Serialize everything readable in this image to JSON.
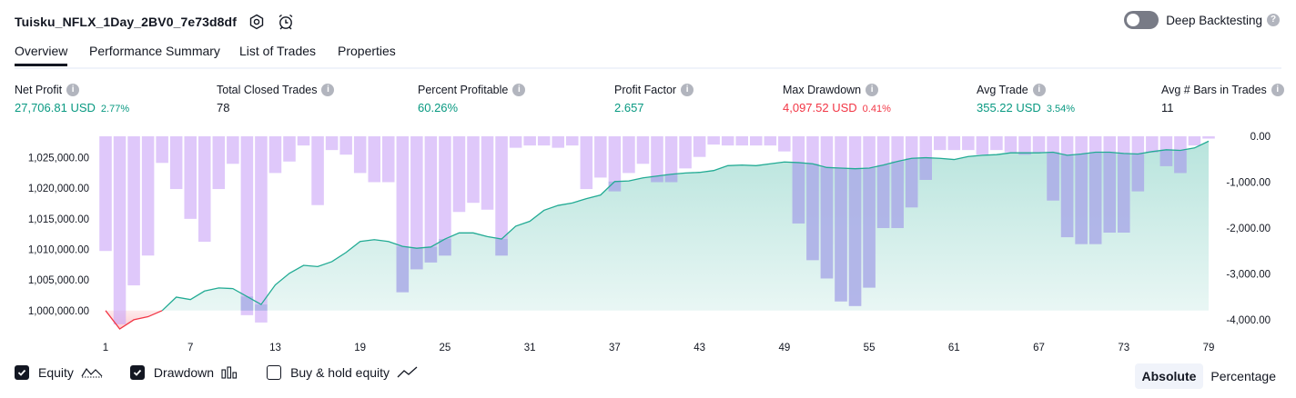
{
  "header": {
    "title": "Tuisku_NFLX_1Day_2BV0_7e73d8df",
    "settings_icon": "gear-icon",
    "alert_icon": "alarm-clock-icon"
  },
  "deep_backtesting": {
    "label": "Deep Backtesting",
    "enabled": false
  },
  "tabs": [
    {
      "label": "Overview",
      "active": true
    },
    {
      "label": "Performance Summary",
      "active": false
    },
    {
      "label": "List of Trades",
      "active": false
    },
    {
      "label": "Properties",
      "active": false
    }
  ],
  "metrics": [
    {
      "label": "Net Profit",
      "value": "27,706.81 USD",
      "pct": "2.77%",
      "tone": "green"
    },
    {
      "label": "Total Closed Trades",
      "value": "78",
      "pct": "",
      "tone": "dark"
    },
    {
      "label": "Percent Profitable",
      "value": "60.26%",
      "pct": "",
      "tone": "green"
    },
    {
      "label": "Profit Factor",
      "value": "2.657",
      "pct": "",
      "tone": "green"
    },
    {
      "label": "Max Drawdown",
      "value": "4,097.52 USD",
      "pct": "0.41%",
      "tone": "red"
    },
    {
      "label": "Avg Trade",
      "value": "355.22 USD",
      "pct": "3.54%",
      "tone": "green"
    },
    {
      "label": "Avg # Bars in Trades",
      "value": "11",
      "pct": "",
      "tone": "dark"
    }
  ],
  "chart_data": {
    "type": "area",
    "x_ticks": [
      "1",
      "7",
      "13",
      "19",
      "25",
      "31",
      "37",
      "43",
      "49",
      "55",
      "61",
      "67",
      "73",
      "79"
    ],
    "left_axis_ticks": [
      "1,025,000.00",
      "1,020,000.00",
      "1,015,000.00",
      "1,010,000.00",
      "1,005,000.00",
      "1,000,000.00"
    ],
    "right_axis_ticks": [
      "0.00",
      "-1,000.00",
      "-2,000.00",
      "-3,000.00",
      "-4,000.00"
    ],
    "equity_range": [
      997000,
      1028500
    ],
    "drawdown_range": [
      -4200,
      0
    ],
    "colors": {
      "equity": "#22ab94",
      "equity_neg": "#f23645",
      "drawdown": "#c9a3f7",
      "overlap": "#a7b2e4"
    },
    "series": [
      {
        "name": "Equity",
        "values": [
          1000000,
          997000,
          998500,
          999000,
          1000000,
          1002200,
          1001800,
          1003200,
          1003700,
          1003600,
          1002300,
          1001000,
          1004200,
          1006100,
          1007400,
          1007200,
          1008000,
          1009500,
          1011300,
          1011600,
          1011300,
          1010500,
          1010200,
          1010400,
          1011700,
          1012700,
          1012700,
          1012100,
          1011700,
          1013800,
          1014600,
          1016400,
          1017200,
          1017600,
          1018300,
          1018900,
          1021100,
          1021200,
          1021700,
          1022000,
          1022300,
          1022500,
          1022600,
          1022900,
          1023700,
          1023800,
          1023700,
          1024000,
          1024300,
          1024200,
          1024000,
          1023400,
          1023300,
          1023200,
          1023300,
          1023800,
          1024400,
          1024900,
          1025000,
          1024900,
          1024700,
          1025200,
          1025400,
          1025500,
          1025800,
          1025800,
          1025800,
          1025900,
          1025400,
          1025600,
          1025900,
          1025900,
          1025700,
          1025600,
          1026000,
          1026300,
          1026200,
          1026600,
          1027700
        ]
      },
      {
        "name": "Drawdown",
        "values": [
          -2500,
          -4100,
          -3250,
          -2600,
          -580,
          -1150,
          -1800,
          -2300,
          -1150,
          -600,
          -3900,
          -4060,
          -800,
          -550,
          -200,
          -1500,
          -300,
          -400,
          -800,
          -1000,
          -1000,
          -3400,
          -2900,
          -2750,
          -2600,
          -1650,
          -1450,
          -1600,
          -2600,
          -250,
          -200,
          -200,
          -250,
          -200,
          -1150,
          -900,
          -1200,
          -800,
          -600,
          -1000,
          -1000,
          -700,
          -450,
          -180,
          -200,
          -200,
          -200,
          -200,
          -330,
          -1900,
          -2700,
          -3100,
          -3600,
          -3700,
          -3300,
          -2000,
          -2000,
          -1550,
          -950,
          -300,
          -300,
          -300,
          -400,
          -300,
          -350,
          -400,
          -350,
          -1400,
          -2200,
          -2350,
          -2350,
          -2100,
          -2100,
          -1200,
          -350,
          -650,
          -800,
          -200,
          -50
        ]
      },
      {
        "name": "Buy & hold equity",
        "values": []
      }
    ]
  },
  "legend": [
    {
      "label": "Equity",
      "checked": true,
      "icon": "equity-line-icon"
    },
    {
      "label": "Drawdown",
      "checked": true,
      "icon": "drawdown-bars-icon"
    },
    {
      "label": "Buy & hold equity",
      "checked": false,
      "icon": "buy-hold-line-icon"
    }
  ],
  "view_modes": [
    {
      "label": "Absolute",
      "active": true
    },
    {
      "label": "Percentage",
      "active": false
    }
  ]
}
